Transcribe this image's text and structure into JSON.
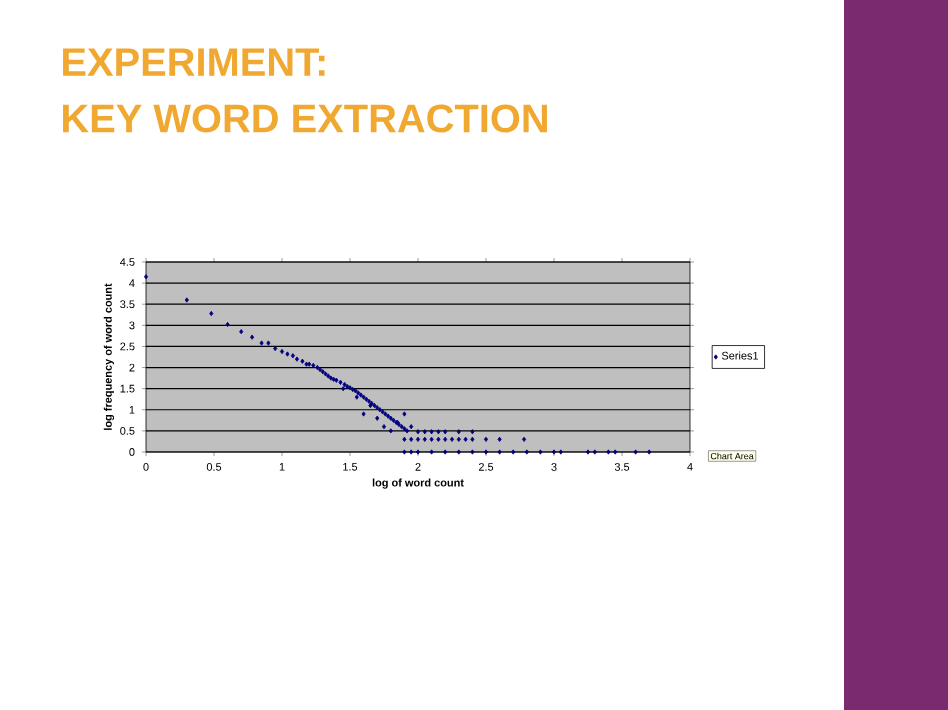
{
  "chart_data": {
    "type": "scatter",
    "title": "EXPERIMENT:",
    "subtitle": "KEY WORD EXTRACTION",
    "xlabel": "log of word count",
    "ylabel": "log frequency of word count",
    "annotations": [
      "Chart Area"
    ],
    "xlim": [
      0,
      4
    ],
    "xticks": [
      0,
      0.5,
      1,
      1.5,
      2,
      2.5,
      3,
      3.5,
      4
    ],
    "ylim": [
      0,
      4.5
    ],
    "yticks": [
      0,
      0.5,
      1,
      1.5,
      2,
      2.5,
      3,
      3.5,
      4,
      4.5
    ],
    "grid": "y",
    "legend": "right",
    "marker": "diamond",
    "series": [
      {
        "name": "Series1",
        "color": "#000080",
        "x": [
          0,
          0.3,
          0.48,
          0.6,
          0.7,
          0.78,
          0.85,
          0.9,
          0.95,
          1.0,
          1.04,
          1.08,
          1.11,
          1.15,
          1.18,
          1.2,
          1.23,
          1.26,
          1.28,
          1.3,
          1.32,
          1.34,
          1.36,
          1.38,
          1.4,
          1.43,
          1.46,
          1.48,
          1.5,
          1.52,
          1.54,
          1.56,
          1.58,
          1.6,
          1.62,
          1.64,
          1.66,
          1.68,
          1.7,
          1.72,
          1.74,
          1.76,
          1.78,
          1.8,
          1.82,
          1.84,
          1.86,
          1.88,
          1.9,
          1.92,
          1.45,
          1.55,
          1.6,
          1.65,
          1.7,
          1.75,
          1.8,
          1.85,
          1.9,
          1.95,
          2.0,
          2.05,
          2.1,
          2.15,
          2.2,
          2.3,
          2.4,
          1.9,
          1.95,
          2.0,
          2.05,
          2.1,
          2.15,
          2.2,
          2.25,
          2.3,
          2.35,
          2.4,
          2.5,
          2.6,
          2.78,
          1.9,
          1.95,
          2.0,
          2.1,
          2.2,
          2.3,
          2.4,
          2.5,
          2.6,
          2.7,
          2.8,
          2.9,
          3.0,
          3.05,
          3.25,
          3.3,
          3.4,
          3.45,
          3.6,
          3.7
        ],
        "values": [
          4.15,
          3.6,
          3.28,
          3.02,
          2.85,
          2.72,
          2.58,
          2.58,
          2.45,
          2.38,
          2.32,
          2.28,
          2.2,
          2.15,
          2.08,
          2.08,
          2.05,
          2.0,
          1.95,
          1.9,
          1.85,
          1.8,
          1.75,
          1.72,
          1.7,
          1.65,
          1.6,
          1.55,
          1.52,
          1.48,
          1.45,
          1.4,
          1.35,
          1.3,
          1.25,
          1.2,
          1.15,
          1.1,
          1.05,
          1.0,
          0.95,
          0.9,
          0.85,
          0.8,
          0.75,
          0.7,
          0.65,
          0.6,
          0.55,
          0.5,
          1.5,
          1.3,
          0.9,
          1.1,
          0.8,
          0.6,
          0.5,
          0.7,
          0.9,
          0.6,
          0.48,
          0.48,
          0.48,
          0.48,
          0.48,
          0.48,
          0.48,
          0.3,
          0.3,
          0.3,
          0.3,
          0.3,
          0.3,
          0.3,
          0.3,
          0.3,
          0.3,
          0.3,
          0.3,
          0.3,
          0.3,
          0,
          0,
          0,
          0,
          0,
          0,
          0,
          0,
          0,
          0,
          0,
          0,
          0,
          0,
          0,
          0,
          0,
          0,
          0,
          0
        ]
      }
    ]
  }
}
